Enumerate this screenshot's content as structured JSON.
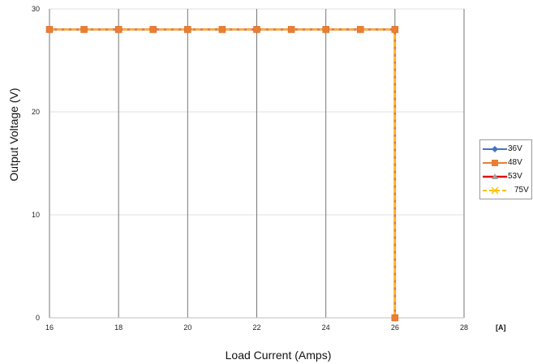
{
  "chart_data": {
    "type": "line",
    "xlabel": "Load Current (Amps)",
    "ylabel": "Output Voltage (V)",
    "x_unit_label": "[A]",
    "xlim": [
      16,
      28
    ],
    "ylim": [
      0,
      30
    ],
    "x_ticks": [
      16,
      18,
      20,
      22,
      24,
      26,
      28
    ],
    "y_ticks": [
      0,
      10,
      20,
      30
    ],
    "grid": {
      "x_major": true,
      "x_color": "#777777",
      "y_major": true,
      "y_color": "#e2e2e2"
    },
    "legend_position": "right",
    "series": [
      {
        "name": "36V",
        "color": "#4472c4",
        "marker": "diamond",
        "x": [
          16,
          17,
          18,
          19,
          20,
          21,
          22,
          23,
          24,
          25,
          26,
          26
        ],
        "y": [
          28,
          28,
          28,
          28,
          28,
          28,
          28,
          28,
          28,
          28,
          28,
          0
        ]
      },
      {
        "name": "48V",
        "color": "#ed7d31",
        "marker": "square",
        "x": [
          16,
          17,
          18,
          19,
          20,
          21,
          22,
          23,
          24,
          25,
          26,
          26
        ],
        "y": [
          28,
          28,
          28,
          28,
          28,
          28,
          28,
          28,
          28,
          28,
          28,
          0
        ]
      },
      {
        "name": "53V",
        "color": "#e01010",
        "marker": "triangle",
        "x": [
          16,
          17,
          18,
          19,
          20,
          21,
          22,
          23,
          24,
          25,
          26,
          26
        ],
        "y": [
          28,
          28,
          28,
          28,
          28,
          28,
          28,
          28,
          28,
          28,
          28,
          0
        ]
      },
      {
        "name": "75V",
        "color": "#ffc000",
        "marker": "x",
        "dashed": true,
        "x": [
          16,
          17,
          18,
          19,
          20,
          21,
          22,
          23,
          24,
          25,
          26,
          26
        ],
        "y": [
          28,
          28,
          28,
          28,
          28,
          28,
          28,
          28,
          28,
          28,
          28,
          0
        ]
      }
    ]
  }
}
